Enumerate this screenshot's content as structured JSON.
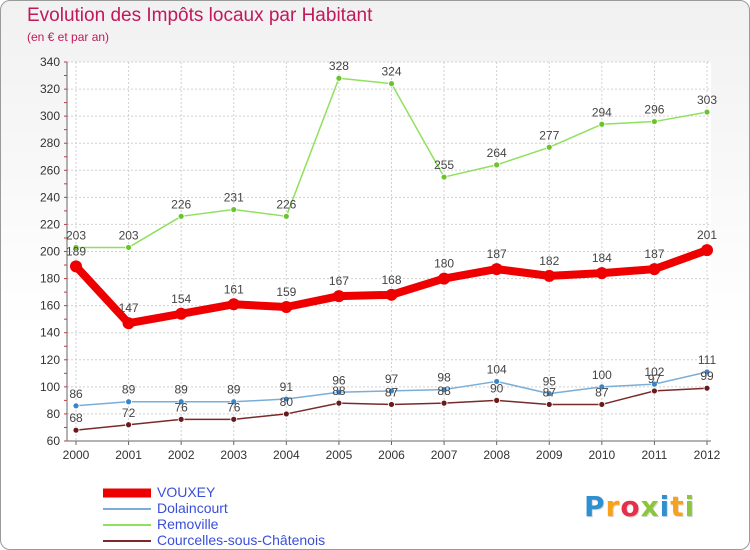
{
  "title": "Evolution des Impôts locaux par Habitant",
  "subtitle": "(en € et par an)",
  "logo": {
    "text": "Proxiti",
    "letters": [
      {
        "ch": "P",
        "color": "#2f8fd0"
      },
      {
        "ch": "r",
        "color": "#f6a21a"
      },
      {
        "ch": "o",
        "color": "#e6304a"
      },
      {
        "ch": "x",
        "color": "#8cc63f"
      },
      {
        "ch": "i",
        "color": "#2f8fd0"
      },
      {
        "ch": "t",
        "color": "#f6a21a"
      },
      {
        "ch": "i",
        "color": "#8cc63f"
      }
    ]
  },
  "chart_data": {
    "type": "line",
    "x": [
      "2000",
      "2001",
      "2002",
      "2003",
      "2004",
      "2005",
      "2006",
      "2007",
      "2008",
      "2009",
      "2010",
      "2011",
      "2012"
    ],
    "ylim": [
      60,
      340
    ],
    "yticks": [
      "60",
      "80",
      "100",
      "120",
      "140",
      "160",
      "180",
      "200",
      "220",
      "240",
      "260",
      "280",
      "300",
      "320",
      "340"
    ],
    "grid": true,
    "legend_position": "bottom-left",
    "series": [
      {
        "name": "Removille",
        "color": "#90e060",
        "marker": "#6ac42e",
        "width": 1.5,
        "values": [
          203,
          203,
          226,
          231,
          226,
          328,
          324,
          255,
          264,
          277,
          294,
          296,
          303
        ],
        "labels": [
          "203",
          "203",
          "226",
          "231",
          "226",
          "328",
          "324",
          "255",
          "264",
          "277",
          "294",
          "296",
          "303"
        ]
      },
      {
        "name": "Dolaincourt",
        "color": "#7aaed8",
        "marker": "#3a85c8",
        "width": 1.5,
        "values": [
          86,
          89,
          89,
          89,
          91,
          96,
          97,
          98,
          104,
          95,
          100,
          102,
          111
        ],
        "labels": [
          "86",
          "89",
          "89",
          "89",
          "91",
          "96",
          "97",
          "98",
          "104",
          "95",
          "100",
          "102",
          "111"
        ]
      },
      {
        "name": "Courcelles-sous-Châtenois",
        "color": "#7a2a2a",
        "marker": "#6a1a1a",
        "width": 1.5,
        "values": [
          68,
          72,
          76,
          76,
          80,
          88,
          87,
          88,
          90,
          87,
          87,
          97,
          99
        ],
        "labels": [
          "68",
          "72",
          "76",
          "76",
          "80",
          "88",
          "87",
          "88",
          "90",
          "87",
          "87",
          "97",
          "99"
        ]
      },
      {
        "name": "VOUXEY",
        "color": "#ee0000",
        "marker": "#ee0000",
        "width": 8,
        "values": [
          189,
          147,
          154,
          161,
          159,
          167,
          168,
          180,
          187,
          182,
          184,
          187,
          201
        ],
        "labels": [
          "189",
          "147",
          "154",
          "161",
          "159",
          "167",
          "168",
          "180",
          "187",
          "182",
          "184",
          "187",
          "201"
        ]
      }
    ],
    "legend": [
      "VOUXEY",
      "Dolaincourt",
      "Removille",
      "Courcelles-sous-Châtenois"
    ]
  }
}
